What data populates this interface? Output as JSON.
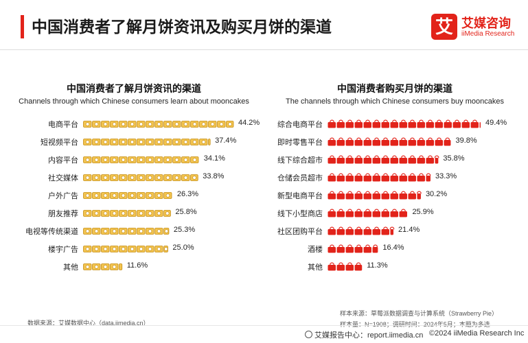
{
  "header": {
    "title": "中国消费者了解月饼资讯及购买月饼的渠道",
    "logo_cn": "艾媒咨询",
    "logo_en": "iiMedia Research",
    "logo_mark": "艾"
  },
  "colors": {
    "accent": "#e2231a",
    "learn_icon": "#f0b429",
    "buy_icon": "#e2231a"
  },
  "chart_data": [
    {
      "type": "bar",
      "title": "中国消费者了解月饼资讯的渠道",
      "subtitle": "Channels through which Chinese consumers learn about mooncakes",
      "unit": "%",
      "categories": [
        "电商平台",
        "短视频平台",
        "内容平台",
        "社交媒体",
        "户外广告",
        "朋友推荐",
        "电视等传统渠道",
        "楼宇广告",
        "其他"
      ],
      "values": [
        44.2,
        37.4,
        34.1,
        33.8,
        26.3,
        25.8,
        25.3,
        25.0,
        11.6
      ],
      "labels": [
        "44.2%",
        "37.4%",
        "34.1%",
        "33.8%",
        "26.3%",
        "25.8%",
        "25.3%",
        "25.0%",
        "11.6%"
      ],
      "icon": "mooncake-box-icon"
    },
    {
      "type": "bar",
      "title": "中国消费者购买月饼的渠道",
      "subtitle": "The channels through which Chinese consumers buy mooncakes",
      "unit": "%",
      "categories": [
        "综合电商平台",
        "即时零售平台",
        "线下综合超市",
        "仓储会员超市",
        "新型电商平台",
        "线下小型商店",
        "社区团购平台",
        "酒楼",
        "其他"
      ],
      "values": [
        49.4,
        39.8,
        35.8,
        33.3,
        30.2,
        25.9,
        21.4,
        16.4,
        11.3
      ],
      "labels": [
        "49.4%",
        "39.8%",
        "35.8%",
        "33.3%",
        "30.2%",
        "25.9%",
        "21.4%",
        "16.4%",
        "11.3%"
      ],
      "icon": "shopping-bag-icon"
    }
  ],
  "notes": {
    "source": "数据来源：艾媒数据中心（data.iimedia.cn）",
    "sample_source": "样本来源：草莓派数据调查与计算系统（Strawberry Pie）",
    "sample_size": "样本量：N=1908；调研时间：2024年5月；本题为多选"
  },
  "footer": {
    "report_site": "艾媒报告中心：report.iimedia.cn",
    "copyright": "©2024  iiMedia Research Inc"
  }
}
